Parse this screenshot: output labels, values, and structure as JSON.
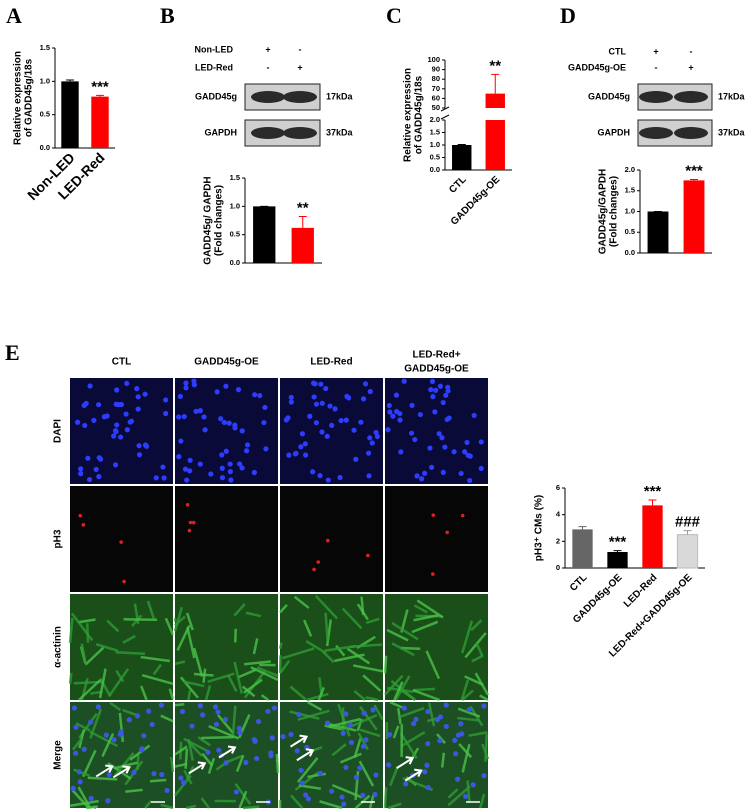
{
  "panel_labels": [
    "A",
    "B",
    "C",
    "D",
    "E"
  ],
  "chart_data": [
    {
      "type": "bar",
      "ylabel": [
        "Relative expression",
        "of GADD45g/18s"
      ],
      "categories": [
        "Non-LED",
        "LED-Red"
      ],
      "values": [
        1.0,
        0.77
      ],
      "errors": [
        0.02,
        0.02
      ],
      "colors": [
        "#000000",
        "#ff0000"
      ],
      "value_annotations": [
        null,
        "***"
      ],
      "ylim": [
        0,
        1.5
      ],
      "yticks": [
        {
          "value": 0,
          "label": "0.0"
        },
        {
          "value": 0.5,
          "label": "0.5"
        },
        {
          "value": 1,
          "label": "1.0"
        },
        {
          "value": 1.5,
          "label": "1.5"
        }
      ]
    },
    {
      "type": "bar",
      "ylabel": [
        "GADD45g/ GAPDH",
        "(Fold changes)"
      ],
      "categories": [
        null,
        null
      ],
      "values": [
        1.0,
        0.62
      ],
      "errors": [
        0,
        0.2
      ],
      "colors": [
        "#000000",
        "#ff0000"
      ],
      "value_annotations": [
        null,
        "**"
      ],
      "ylim": [
        0,
        1.5
      ],
      "yticks": [
        {
          "value": 0,
          "label": "0.0"
        },
        {
          "value": 0.5,
          "label": "0.5"
        },
        {
          "value": 1,
          "label": "1.0"
        },
        {
          "value": 1.5,
          "label": "1.5"
        }
      ]
    },
    {
      "type": "bar",
      "ylabel": [
        "Relative expression",
        "of GADD45g/18s"
      ],
      "categories": [
        "CTL",
        "GADD45g-OE"
      ],
      "values": [
        1.0,
        65
      ],
      "errors": [
        0.02,
        20
      ],
      "colors": [
        "#000000",
        "#ff0000"
      ],
      "value_annotations": [
        null,
        "**"
      ],
      "ylim": [
        0,
        100
      ],
      "ybreak": [
        2,
        50
      ],
      "yticks": [
        {
          "value": 0,
          "label": "0.0"
        },
        {
          "value": 0.5,
          "label": "0.5"
        },
        {
          "value": 1,
          "label": "1.0"
        },
        {
          "value": 1.5,
          "label": "1.5"
        },
        {
          "value": 2,
          "label": "2.0"
        },
        50,
        60,
        70,
        80,
        90,
        100
      ]
    },
    {
      "type": "bar",
      "ylabel": [
        "GADD45g/GAPDH",
        "(Fold changes)"
      ],
      "categories": [
        null,
        null
      ],
      "values": [
        1.0,
        1.75
      ],
      "errors": [
        0,
        0.02
      ],
      "colors": [
        "#000000",
        "#ff0000"
      ],
      "value_annotations": [
        null,
        "***"
      ],
      "ylim": [
        0,
        2
      ],
      "yticks": [
        {
          "value": 0,
          "label": "0.0"
        },
        {
          "value": 0.5,
          "label": "0.5"
        },
        {
          "value": 1,
          "label": "1.0"
        },
        {
          "value": 1.5,
          "label": "1.5"
        },
        {
          "value": 2,
          "label": "2.0"
        }
      ]
    },
    {
      "type": "bar",
      "ylabel": [
        "pH3⁺ CMs (%)"
      ],
      "categories": [
        "CTL",
        "GADD45g-OE",
        "LED-Red",
        "LED-Red+GADD45g-OE"
      ],
      "values": [
        2.9,
        1.2,
        4.7,
        2.5
      ],
      "errors": [
        0.2,
        0.1,
        0.4,
        0.3
      ],
      "colors": [
        "#666666",
        "#000000",
        "#ff0000",
        "#d9d9d9"
      ],
      "value_annotations": [
        null,
        "***",
        "***",
        "###"
      ],
      "ylim": [
        0,
        6
      ],
      "yticks": [
        0,
        2,
        4,
        6
      ]
    }
  ],
  "blots": [
    {
      "conditions": [
        {
          "name": "Non-LED",
          "signs": [
            "+",
            "-"
          ]
        },
        {
          "name": "LED-Red",
          "signs": [
            "-",
            "+"
          ]
        }
      ],
      "bands": [
        {
          "name": "GADD45g",
          "size": "17kDa"
        },
        {
          "name": "GAPDH",
          "size": "37kDa"
        }
      ]
    },
    {
      "conditions": [
        {
          "name": "CTL",
          "signs": [
            "+",
            "-"
          ]
        },
        {
          "name": "GADD45g-OE",
          "signs": [
            "-",
            "+"
          ]
        }
      ],
      "bands": [
        {
          "name": "GADD45g",
          "size": "17kDa"
        },
        {
          "name": "GAPDH",
          "size": "37kDa"
        }
      ]
    }
  ],
  "microscopy": {
    "columns": [
      [
        "CTL"
      ],
      [
        "GADD45g-OE"
      ],
      [
        "LED-Red"
      ],
      [
        "LED-Red+",
        "GADD45g-OE"
      ]
    ],
    "rows": [
      "DAPI",
      "pH3",
      "α-actinin",
      "Merge"
    ]
  }
}
